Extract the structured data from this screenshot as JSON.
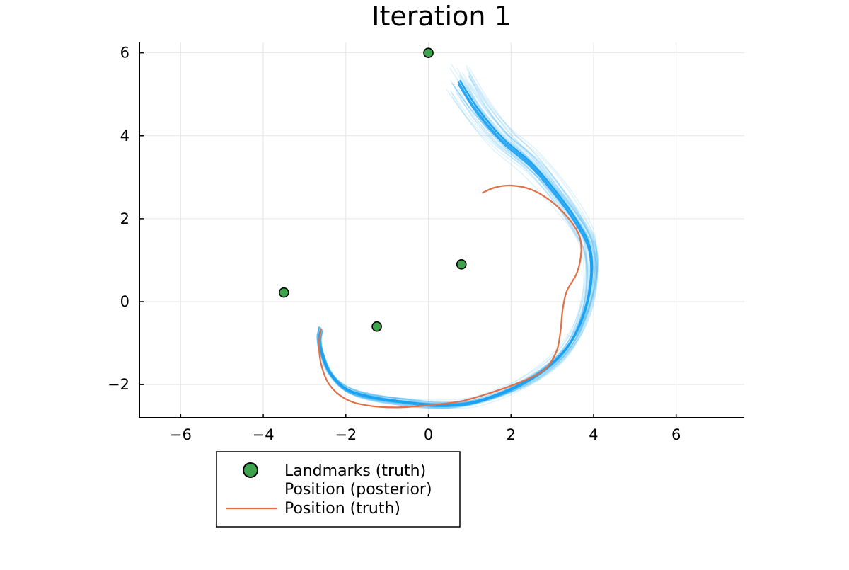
{
  "chart_data": {
    "type": "scatter",
    "title": "Iteration 1",
    "xlabel": "",
    "ylabel": "",
    "xlim": [
      -7,
      7.65
    ],
    "ylim": [
      -2.8,
      6.25
    ],
    "xticks": [
      -6,
      -4,
      -2,
      0,
      2,
      4,
      6
    ],
    "yticks": [
      -2,
      0,
      2,
      4,
      6
    ],
    "xtick_labels": [
      "−6",
      "−4",
      "−2",
      "0",
      "2",
      "4",
      "6"
    ],
    "ytick_labels": [
      "−2",
      "0",
      "2",
      "4",
      "6"
    ],
    "grid": true,
    "legend_position": "bottom-left, outside",
    "colors": {
      "landmarks": "#3da44d",
      "posterior": "#1ba1f2",
      "truth": "#e26f46",
      "axis": "#000000",
      "grid": "#e6e6e6"
    },
    "series": [
      {
        "name": "Landmarks (truth)",
        "kind": "scatter",
        "x": [
          0.0,
          0.8,
          -3.5,
          -1.25
        ],
        "y": [
          6.0,
          0.9,
          0.22,
          -0.6
        ]
      },
      {
        "name": "Position (posterior)",
        "kind": "line-ensemble",
        "x": [
          0.75,
          1.2,
          1.8,
          2.5,
          3.1,
          3.6,
          3.9,
          3.95,
          3.8,
          3.5,
          3.1,
          2.5,
          1.8,
          1.0,
          0.2,
          -0.6,
          -1.4,
          -2.0,
          -2.4,
          -2.6,
          -2.65,
          -2.6
        ],
        "y": [
          5.3,
          4.6,
          3.9,
          3.3,
          2.6,
          1.9,
          1.3,
          0.6,
          -0.2,
          -0.9,
          -1.4,
          -1.85,
          -2.2,
          -2.45,
          -2.5,
          -2.42,
          -2.3,
          -2.1,
          -1.7,
          -1.2,
          -0.9,
          -0.65
        ]
      },
      {
        "name": "Position (truth)",
        "kind": "line",
        "x": [
          1.3,
          1.6,
          2.0,
          2.5,
          3.0,
          3.4,
          3.65,
          3.7,
          3.6,
          3.35,
          3.25,
          3.2,
          3.1,
          2.8,
          2.2,
          1.5,
          0.8,
          0.0,
          -0.8,
          -1.5,
          -2.0,
          -2.4,
          -2.6,
          -2.65,
          -2.6
        ],
        "y": [
          2.62,
          2.75,
          2.8,
          2.7,
          2.4,
          2.0,
          1.6,
          1.2,
          0.7,
          0.25,
          -0.2,
          -0.7,
          -1.2,
          -1.65,
          -1.95,
          -2.2,
          -2.4,
          -2.5,
          -2.55,
          -2.5,
          -2.35,
          -2.0,
          -1.5,
          -1.0,
          -0.65
        ]
      }
    ]
  }
}
